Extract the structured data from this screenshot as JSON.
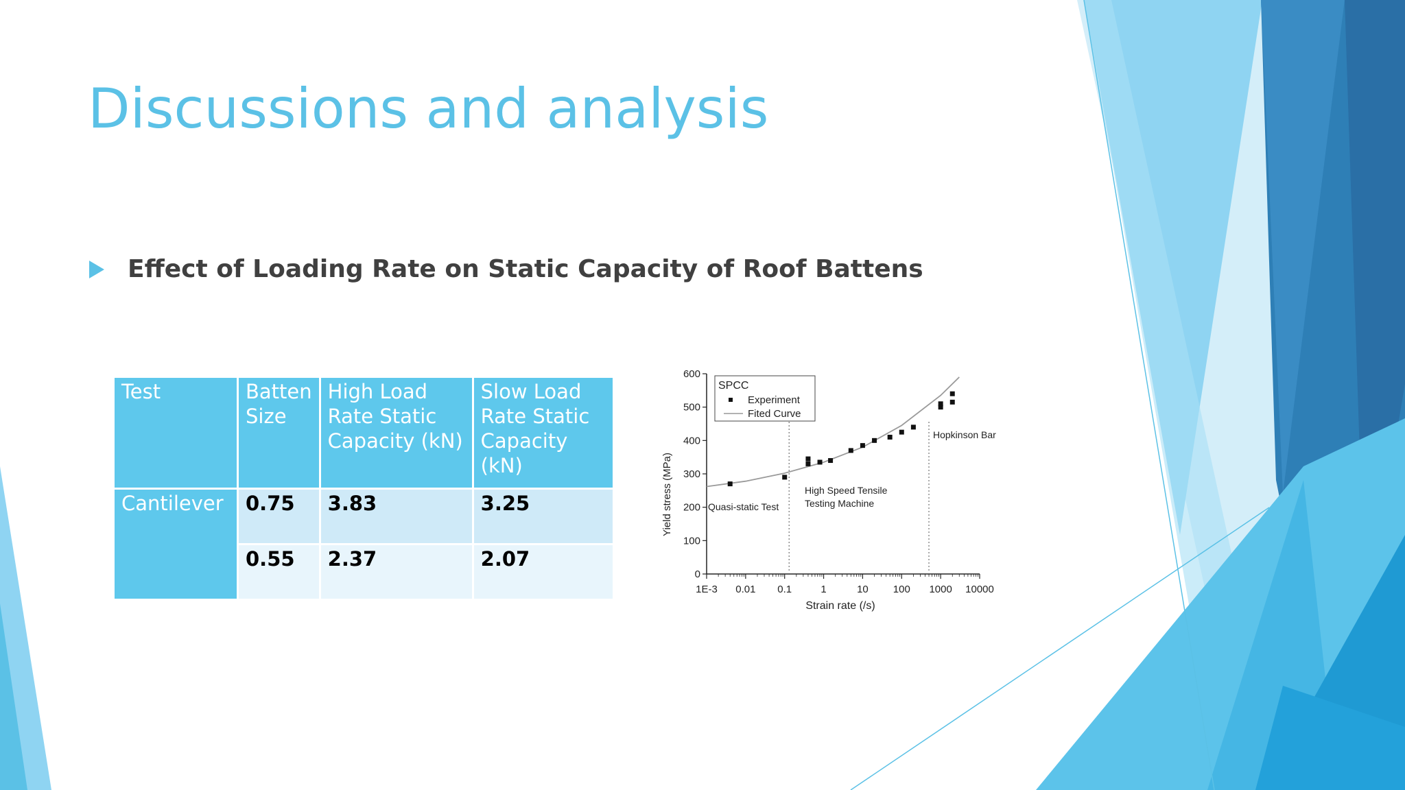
{
  "slide": {
    "title": "Discussions and analysis",
    "bullet": "Effect of Loading Rate on Static Capacity of Roof Battens",
    "accent_color": "#5bc1e6"
  },
  "table": {
    "headers": [
      "Test",
      "Batten Size",
      "High Load Rate Static Capacity (kN)",
      "Slow Load Rate Static Capacity (kN)"
    ],
    "group_label": "Cantilever",
    "rows": [
      [
        "0.75",
        "3.83",
        "3.25"
      ],
      [
        "0.55",
        "2.37",
        "2.07"
      ]
    ]
  },
  "chart_data": {
    "type": "scatter",
    "x_scale": "log",
    "xlabel": "Strain rate (/s)",
    "ylabel": "Yield stress (MPa)",
    "xlim": [
      0.001,
      10000
    ],
    "ylim": [
      0,
      600
    ],
    "x_ticks": [
      "1E-3",
      "0.01",
      "0.1",
      "1",
      "10",
      "100",
      "1000",
      "10000"
    ],
    "y_ticks": [
      "0",
      "100",
      "200",
      "300",
      "400",
      "500",
      "600"
    ],
    "legend_title": "SPCC",
    "legend_position": "top-left",
    "series": [
      {
        "name": "Experiment",
        "kind": "points",
        "x": [
          0.004,
          0.1,
          0.4,
          0.4,
          0.8,
          1.5,
          5,
          10,
          20,
          50,
          100,
          200,
          1000,
          1000,
          2000,
          2000
        ],
        "y": [
          270,
          290,
          345,
          330,
          335,
          340,
          370,
          385,
          400,
          410,
          425,
          440,
          500,
          510,
          540,
          515
        ]
      },
      {
        "name": "Fited Curve",
        "kind": "line",
        "x": [
          0.001,
          0.01,
          0.1,
          1,
          10,
          100,
          1000,
          3000
        ],
        "y": [
          262,
          278,
          302,
          335,
          380,
          445,
          535,
          590
        ]
      }
    ],
    "regions": [
      "Quasi-static Test",
      "High Speed Tensile",
      "Testing Machine",
      "Hopkinson Bar"
    ],
    "dividers_x": [
      0.13,
      500
    ]
  }
}
